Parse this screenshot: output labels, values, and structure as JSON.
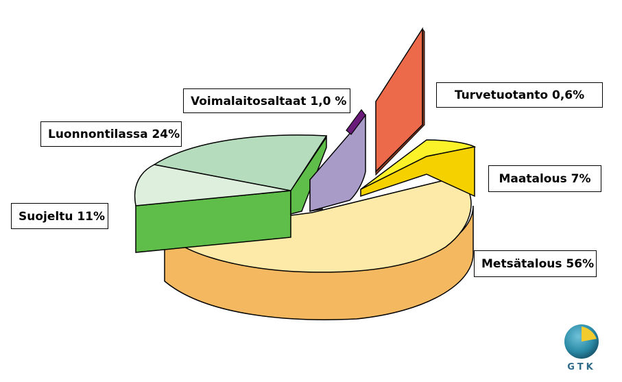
{
  "chart_data": {
    "type": "pie",
    "title": "",
    "slices": [
      {
        "label": "Metsätalous 56%",
        "value": 56,
        "top": "#fde9a8",
        "side": "#f4b960"
      },
      {
        "label": "Suojeltu 11%",
        "value": 11,
        "top": "#deefdd",
        "side": "#5fbd4a"
      },
      {
        "label": "Luonnontilassa 24%",
        "value": 24,
        "top": "#b5dcbc",
        "side": "#5fbd4a"
      },
      {
        "label": "Voimalaitosaltaat 1,0 %",
        "value": 1.0,
        "top": "#6a1b7a",
        "side": "#4a0f56"
      },
      {
        "label": "Turvetuotanto 0,6%",
        "value": 0.6,
        "top": "#ec6a4a",
        "side": "#c4492e"
      },
      {
        "label": "Maatalous 7%",
        "value": 7,
        "top": "#fbf22a",
        "side": "#f5d100"
      }
    ],
    "extra_wedge": {
      "top": "#a99bc8",
      "side": "#8a7aae"
    }
  },
  "logo": {
    "text": "GTK"
  }
}
